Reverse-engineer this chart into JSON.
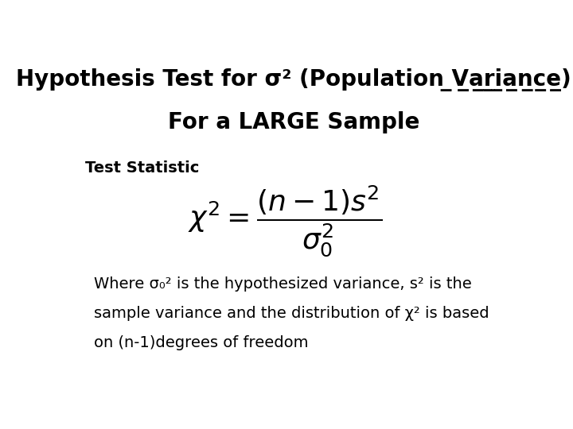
{
  "title_line1": "Hypothesis Test for σ² (Population Variance)",
  "title_line2": "For a LARGE Sample",
  "test_statistic_label": "Test Statistic",
  "formula": "\\chi^2 = \\dfrac{(n-1)s^2}{\\sigma_0^2}",
  "body_text_line1": "Where σ₀² is the hypothesized variance, s² is the",
  "body_text_line2": "sample variance and the distribution of χ² is based",
  "body_text_line3": "on (n-1)degrees of freedom",
  "bg_color": "#ffffff",
  "text_color": "#000000",
  "title_fontsize": 20,
  "label_fontsize": 14,
  "body_fontsize": 14,
  "formula_fontsize": 26
}
